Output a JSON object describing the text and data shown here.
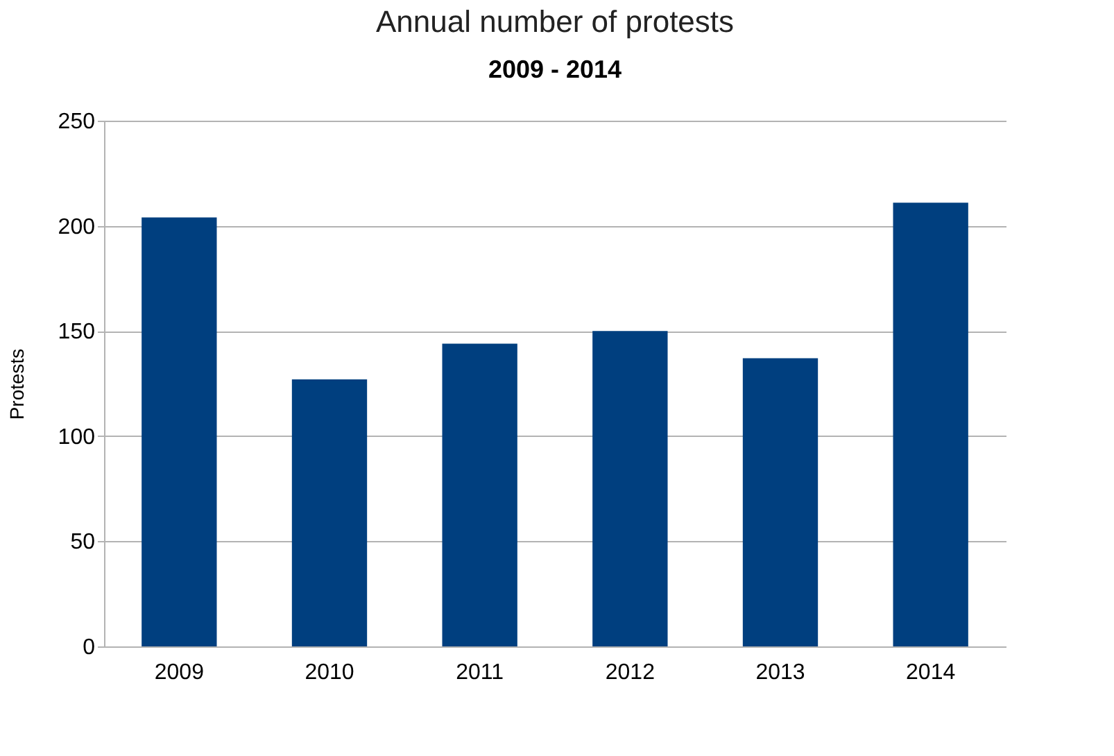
{
  "chart_data": {
    "type": "bar",
    "title": "Annual number of protests",
    "subtitle": "2009 - 2014",
    "ylabel": "Protests",
    "categories": [
      "2009",
      "2010",
      "2011",
      "2012",
      "2013",
      "2014"
    ],
    "values": [
      204,
      127,
      144,
      150,
      137,
      211
    ],
    "color": "#003f7f",
    "ylim": [
      0,
      250
    ],
    "yticks": [
      0,
      50,
      100,
      150,
      200,
      250
    ],
    "grid": "y"
  }
}
